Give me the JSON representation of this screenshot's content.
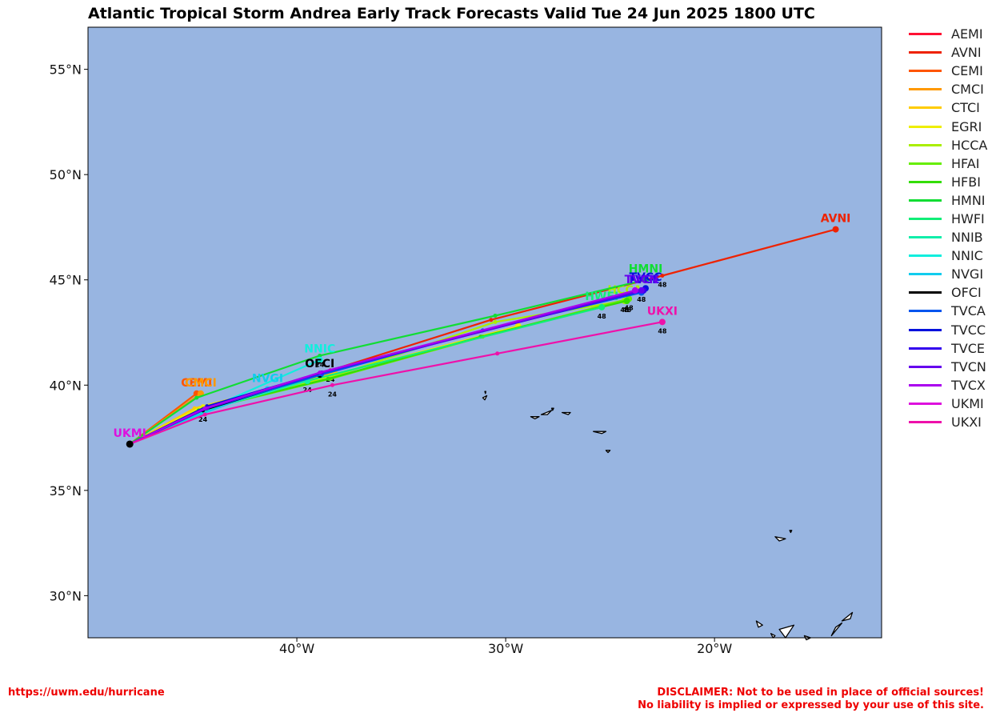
{
  "title": "Atlantic Tropical Storm Andrea Early Track Forecasts Valid Tue 24 Jun 2025 1800 UTC",
  "footer": {
    "url": "https://uwm.edu/hurricane",
    "disclaimer_line1": "DISCLAIMER: Not to be used in place of official sources!",
    "disclaimer_line2": "No liability is implied or expressed by your use of this site."
  },
  "colors": {
    "ocean": "#98b5e1",
    "land": "#ffffff",
    "coast": "#000000"
  },
  "map": {
    "lon_range": [
      -50,
      -12
    ],
    "lat_range": [
      28,
      57
    ],
    "lat_ticks": [
      {
        "value": 55,
        "label": "55°N"
      },
      {
        "value": 50,
        "label": "50°N"
      },
      {
        "value": 45,
        "label": "45°N"
      },
      {
        "value": 40,
        "label": "40°N"
      },
      {
        "value": 35,
        "label": "35°N"
      },
      {
        "value": 30,
        "label": "30°N"
      }
    ],
    "lon_ticks": [
      {
        "value": -40,
        "label": "40°W"
      },
      {
        "value": -30,
        "label": "30°W"
      },
      {
        "value": -20,
        "label": "20°W"
      }
    ],
    "start": {
      "lon": -48.0,
      "lat": 37.2
    },
    "tracks": [
      {
        "name": "AEMI",
        "color": "#ff1133",
        "points": [
          [
            -48,
            37.2
          ],
          [
            -44.8,
            38.8
          ],
          [
            -38.3,
            40.6
          ]
        ],
        "label_text": "AEMI",
        "show_label": false,
        "hr_labels": []
      },
      {
        "name": "AVNI",
        "color": "#ee2200",
        "points": [
          [
            -48,
            37.2
          ],
          [
            -44.6,
            38.9
          ],
          [
            -38.4,
            40.7
          ],
          [
            -30.7,
            43.1
          ],
          [
            -22.5,
            45.2
          ],
          [
            -14.2,
            47.4
          ]
        ],
        "label_text": "AVNI",
        "show_label": true,
        "hr_labels": [
          {
            "at": 2,
            "text": "24"
          },
          {
            "at": 4,
            "text": "48"
          }
        ]
      },
      {
        "name": "CEMI",
        "color": "#ff5500",
        "points": [
          [
            -48,
            37.2
          ],
          [
            -44.8,
            39.6
          ]
        ],
        "label_text": "CEMI",
        "show_label": true,
        "hr_labels": []
      },
      {
        "name": "CMCI",
        "color": "#ff9900",
        "points": [
          [
            -48,
            37.2
          ],
          [
            -44.6,
            39.6
          ]
        ],
        "label_text": "CMCI",
        "show_label": true,
        "hr_labels": []
      },
      {
        "name": "CTCI",
        "color": "#ffcc00",
        "points": [
          [
            -48,
            37.2
          ],
          [
            -44.9,
            38.9
          ],
          [
            -38.2,
            40.6
          ]
        ],
        "label_text": "CTCI",
        "show_label": false,
        "hr_labels": []
      },
      {
        "name": "EGRI",
        "color": "#eeee00",
        "points": [
          [
            -48,
            37.2
          ],
          [
            -44.5,
            39.0
          ],
          [
            -38.2,
            40.5
          ],
          [
            -29.4,
            42.8
          ]
        ],
        "label_text": "EGRI",
        "show_label": false,
        "hr_labels": []
      },
      {
        "name": "HCCA",
        "color": "#aaee00",
        "points": [
          [
            -48,
            37.2
          ],
          [
            -44.5,
            38.9
          ],
          [
            -38.3,
            40.4
          ],
          [
            -30.5,
            43.0
          ],
          [
            -24.3,
            44.0
          ]
        ],
        "label_text": "HCCA",
        "show_label": true,
        "hr_labels": [
          {
            "at": 4,
            "text": "48"
          }
        ]
      },
      {
        "name": "HFAI",
        "color": "#66ee00",
        "points": [
          [
            -48,
            37.2
          ],
          [
            -44.6,
            38.8
          ],
          [
            -38.4,
            40.3
          ],
          [
            -31.1,
            42.3
          ],
          [
            -24.1,
            44.1
          ]
        ],
        "label_text": "HFAI",
        "show_label": false,
        "hr_labels": [
          {
            "at": 4,
            "text": "48"
          }
        ]
      },
      {
        "name": "HFBI",
        "color": "#33dd00",
        "points": [
          [
            -48,
            37.2
          ],
          [
            -44.7,
            38.8
          ],
          [
            -38.5,
            40.3
          ],
          [
            -31.2,
            42.3
          ],
          [
            -24.2,
            44.0
          ]
        ],
        "label_text": "HFBI",
        "show_label": false,
        "hr_labels": [
          {
            "at": 4,
            "text": "48"
          }
        ]
      },
      {
        "name": "HMNI",
        "color": "#11dd33",
        "points": [
          [
            -48,
            37.2
          ],
          [
            -44.8,
            39.4
          ],
          [
            -38.9,
            41.4
          ],
          [
            -30.5,
            43.3
          ],
          [
            -23.3,
            45.0
          ]
        ],
        "label_text": "HMNI",
        "show_label": true,
        "hr_labels": [
          {
            "at": 2,
            "text": "24"
          }
        ]
      },
      {
        "name": "HWFI",
        "color": "#11ee77",
        "points": [
          [
            -48,
            37.2
          ],
          [
            -44.4,
            38.9
          ],
          [
            -39.5,
            40.2
          ],
          [
            -25.4,
            43.7
          ]
        ],
        "label_text": "HWFI",
        "show_label": true,
        "hr_labels": [
          {
            "at": 2,
            "text": "24"
          },
          {
            "at": 3,
            "text": "48"
          }
        ]
      },
      {
        "name": "NNIB",
        "color": "#11eeaa",
        "points": [
          [
            -48,
            37.2
          ],
          [
            -44.0,
            38.9
          ],
          [
            -39.5,
            40.2
          ]
        ],
        "label_text": "NNIB",
        "show_label": false,
        "hr_labels": []
      },
      {
        "name": "NNIC",
        "color": "#11eedd",
        "points": [
          [
            -48,
            37.2
          ],
          [
            -44.2,
            38.9
          ],
          [
            -38.9,
            41.2
          ]
        ],
        "label_text": "NNIC",
        "show_label": true,
        "hr_labels": []
      },
      {
        "name": "NVGI",
        "color": "#11ccee",
        "points": [
          [
            -48,
            37.2
          ],
          [
            -46.0,
            38.1
          ],
          [
            -41.4,
            39.8
          ]
        ],
        "label_text": "NVGI",
        "show_label": true,
        "hr_labels": []
      },
      {
        "name": "OFCI",
        "color": "#000000",
        "points": [
          [
            -48,
            37.2
          ],
          [
            -44.5,
            38.8
          ],
          [
            -38.9,
            40.5
          ]
        ],
        "label_text": "OFCI",
        "show_label": true,
        "hr_labels": [
          {
            "at": 1,
            "text": "24"
          }
        ]
      },
      {
        "name": "TVCA",
        "color": "#0055ee",
        "points": [
          [
            -48,
            37.2
          ],
          [
            -44.3,
            38.9
          ],
          [
            -38.8,
            40.5
          ],
          [
            -31.1,
            42.6
          ],
          [
            -23.5,
            44.4
          ]
        ],
        "label_text": "TVCA",
        "show_label": false,
        "hr_labels": []
      },
      {
        "name": "TVCC",
        "color": "#0011dd",
        "points": [
          [
            -48,
            37.2
          ],
          [
            -44.3,
            39.0
          ],
          [
            -38.8,
            40.6
          ],
          [
            -23.3,
            44.6
          ]
        ],
        "label_text": "TVCC",
        "show_label": true,
        "hr_labels": []
      },
      {
        "name": "TVCE",
        "color": "#3300ee",
        "points": [
          [
            -48,
            37.2
          ],
          [
            -44.3,
            38.9
          ],
          [
            -38.8,
            40.6
          ],
          [
            -23.4,
            44.5
          ]
        ],
        "label_text": "TVCE",
        "show_label": true,
        "hr_labels": []
      },
      {
        "name": "TVCN",
        "color": "#6600ee",
        "points": [
          [
            -48,
            37.2
          ],
          [
            -44.3,
            38.9
          ],
          [
            -38.8,
            40.6
          ],
          [
            -23.5,
            44.5
          ]
        ],
        "label_text": "TVCN",
        "show_label": true,
        "hr_labels": [
          {
            "at": 3,
            "text": "48"
          }
        ]
      },
      {
        "name": "TVCX",
        "color": "#aa00ee",
        "points": [
          [
            -48,
            37.2
          ],
          [
            -44.4,
            38.9
          ],
          [
            -38.9,
            40.6
          ],
          [
            -23.8,
            44.5
          ]
        ],
        "label_text": "TVCX",
        "show_label": false,
        "hr_labels": []
      },
      {
        "name": "UKMI",
        "color": "#dd11dd",
        "points": [
          [
            -48,
            37.2
          ]
        ],
        "label_text": "UKMI",
        "show_label": true,
        "hr_labels": []
      },
      {
        "name": "UKXI",
        "color": "#ee11aa",
        "points": [
          [
            -48,
            37.2
          ],
          [
            -44.4,
            38.6
          ],
          [
            -38.3,
            40.0
          ],
          [
            -30.4,
            41.5
          ],
          [
            -22.5,
            43.0
          ]
        ],
        "label_text": "UKXI",
        "show_label": true,
        "hr_labels": [
          {
            "at": 2,
            "text": "24"
          },
          {
            "at": 4,
            "text": "48"
          }
        ]
      }
    ],
    "islands": [
      [
        [
          -31.1,
          39.4
        ],
        [
          -30.9,
          39.5
        ],
        [
          -31.0,
          39.3
        ]
      ],
      [
        [
          -31.0,
          39.7
        ],
        [
          -30.95,
          39.7
        ],
        [
          -30.97,
          39.6
        ]
      ],
      [
        [
          -28.8,
          38.5
        ],
        [
          -28.4,
          38.5
        ],
        [
          -28.6,
          38.4
        ]
      ],
      [
        [
          -28.3,
          38.6
        ],
        [
          -27.8,
          38.8
        ],
        [
          -28.0,
          38.6
        ]
      ],
      [
        [
          -27.8,
          38.9
        ],
        [
          -27.7,
          38.9
        ],
        [
          -27.75,
          38.8
        ]
      ],
      [
        [
          -27.3,
          38.7
        ],
        [
          -26.9,
          38.7
        ],
        [
          -27.0,
          38.6
        ]
      ],
      [
        [
          -25.8,
          37.8
        ],
        [
          -25.2,
          37.8
        ],
        [
          -25.4,
          37.7
        ]
      ],
      [
        [
          -25.2,
          36.9
        ],
        [
          -25.0,
          36.9
        ],
        [
          -25.1,
          36.8
        ]
      ],
      [
        [
          -17.1,
          32.8
        ],
        [
          -16.6,
          32.7
        ],
        [
          -16.9,
          32.6
        ]
      ],
      [
        [
          -16.4,
          33.1
        ],
        [
          -16.3,
          33.1
        ],
        [
          -16.35,
          33.0
        ]
      ],
      [
        [
          -18.0,
          28.8
        ],
        [
          -17.7,
          28.6
        ],
        [
          -17.9,
          28.5
        ]
      ],
      [
        [
          -17.3,
          28.2
        ],
        [
          -17.1,
          28.1
        ],
        [
          -17.2,
          28.0
        ]
      ],
      [
        [
          -16.9,
          28.4
        ],
        [
          -16.2,
          28.6
        ],
        [
          -16.6,
          28.0
        ]
      ],
      [
        [
          -15.7,
          28.1
        ],
        [
          -15.4,
          28.0
        ],
        [
          -15.6,
          27.9
        ]
      ],
      [
        [
          -14.4,
          28.1
        ],
        [
          -13.9,
          28.7
        ],
        [
          -14.2,
          28.5
        ]
      ],
      [
        [
          -13.9,
          28.8
        ],
        [
          -13.4,
          29.2
        ],
        [
          -13.5,
          28.9
        ]
      ]
    ]
  }
}
